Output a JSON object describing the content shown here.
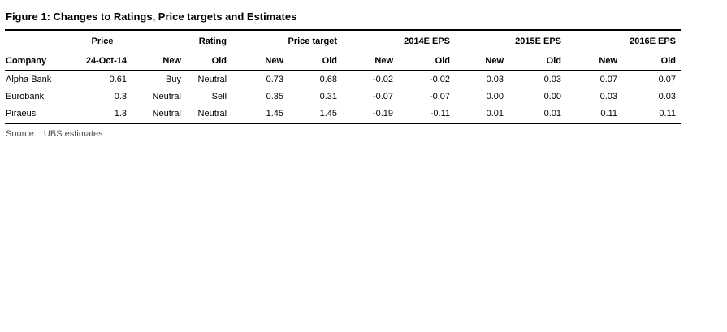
{
  "title": "Figure 1: Changes to Ratings, Price targets and Estimates",
  "table": {
    "group_headers": [
      {
        "label": "",
        "span": 1,
        "align": "left"
      },
      {
        "label": "Price",
        "span": 1,
        "align": "center"
      },
      {
        "label": "Rating",
        "span": 2,
        "align": "right"
      },
      {
        "label": "Price target",
        "span": 2,
        "align": "right"
      },
      {
        "label": "2014E EPS",
        "span": 2,
        "align": "right"
      },
      {
        "label": "2015E EPS",
        "span": 2,
        "align": "right"
      },
      {
        "label": "2016E EPS",
        "span": 2,
        "align": "right"
      }
    ],
    "sub_headers": [
      "Company",
      "24-Oct-14",
      "New",
      "Old",
      "New",
      "Old",
      "New",
      "Old",
      "New",
      "Old",
      "New",
      "Old"
    ],
    "rows": [
      [
        "Alpha Bank",
        "0.61",
        "Buy",
        "Neutral",
        "0.73",
        "0.68",
        "-0.02",
        "-0.02",
        "0.03",
        "0.03",
        "0.07",
        "0.07"
      ],
      [
        "Eurobank",
        "0.3",
        "Neutral",
        "Sell",
        "0.35",
        "0.31",
        "-0.07",
        "-0.07",
        "0.00",
        "0.00",
        "0.03",
        "0.03"
      ],
      [
        "Piraeus",
        "1.3",
        "Neutral",
        "Neutral",
        "1.45",
        "1.45",
        "-0.19",
        "-0.11",
        "0.01",
        "0.01",
        "0.11",
        "0.11"
      ]
    ]
  },
  "source": {
    "label": "Source:",
    "text": "UBS estimates"
  },
  "colors": {
    "text": "#000000",
    "rule": "#000000",
    "source_text": "#4d4d4d",
    "background": "#ffffff"
  }
}
